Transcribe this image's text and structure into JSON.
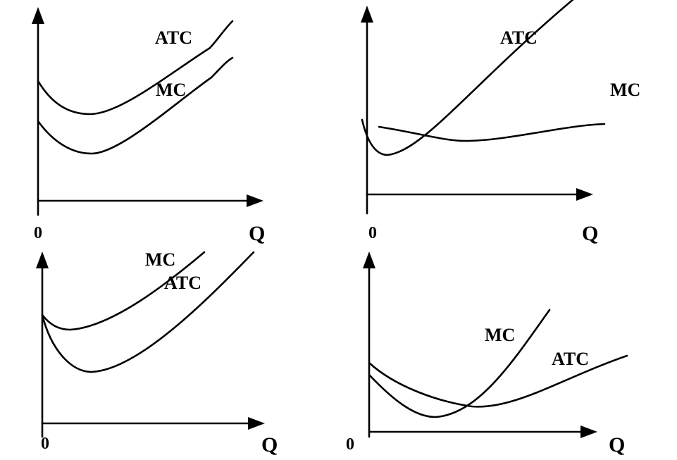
{
  "panels": [
    {
      "id": "top-left",
      "labels": {
        "curve_a": "ATC",
        "curve_b": "MC",
        "x_axis": "Q",
        "origin": "0"
      }
    },
    {
      "id": "top-right",
      "labels": {
        "curve_a": "ATC",
        "curve_b": "MC",
        "x_axis": "Q",
        "origin": "0"
      }
    },
    {
      "id": "bottom-left",
      "labels": {
        "curve_a": "MC",
        "curve_b": "ATC",
        "x_axis": "Q",
        "origin": "0"
      }
    },
    {
      "id": "bottom-right",
      "labels": {
        "curve_a": "MC",
        "curve_b": "ATC",
        "x_axis": "Q",
        "origin": "0"
      }
    }
  ]
}
